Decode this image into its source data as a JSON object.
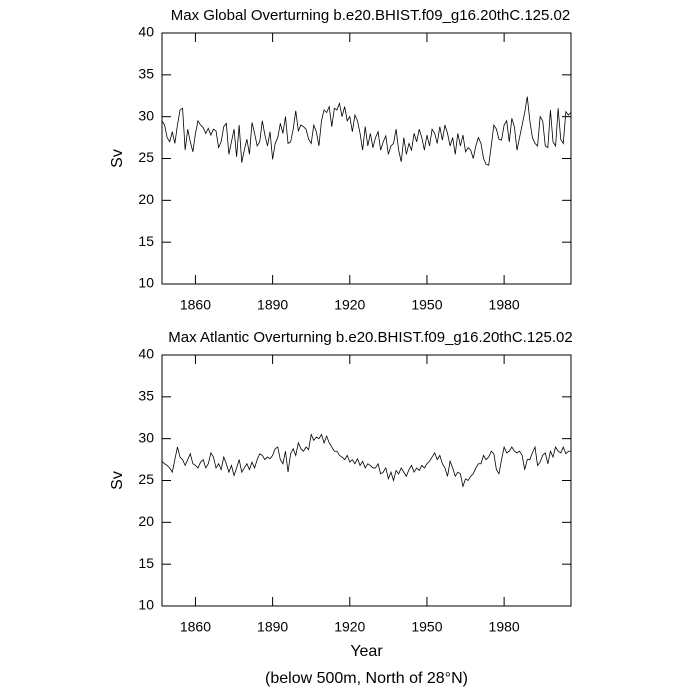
{
  "chart_data": [
    {
      "type": "line",
      "title": "Max Global Overturning b.e20.BHIST.f09_g16.20thC.125.02",
      "y_label": "Sv",
      "xlim": [
        1847,
        2006
      ],
      "ylim": [
        10,
        40
      ],
      "xticks": [
        1860,
        1890,
        1920,
        1950,
        1980
      ],
      "yticks": [
        10,
        15,
        20,
        25,
        30,
        35,
        40
      ],
      "x": [
        1847,
        1848,
        1849,
        1850,
        1851,
        1852,
        1853,
        1854,
        1855,
        1856,
        1857,
        1858,
        1859,
        1860,
        1861,
        1862,
        1863,
        1864,
        1865,
        1866,
        1867,
        1868,
        1869,
        1870,
        1871,
        1872,
        1873,
        1874,
        1875,
        1876,
        1877,
        1878,
        1879,
        1880,
        1881,
        1882,
        1883,
        1884,
        1885,
        1886,
        1887,
        1888,
        1889,
        1890,
        1891,
        1892,
        1893,
        1894,
        1895,
        1896,
        1897,
        1898,
        1899,
        1900,
        1901,
        1902,
        1903,
        1904,
        1905,
        1906,
        1907,
        1908,
        1909,
        1910,
        1911,
        1912,
        1913,
        1914,
        1915,
        1916,
        1917,
        1918,
        1919,
        1920,
        1921,
        1922,
        1923,
        1924,
        1925,
        1926,
        1927,
        1928,
        1929,
        1930,
        1931,
        1932,
        1933,
        1934,
        1935,
        1936,
        1937,
        1938,
        1939,
        1940,
        1941,
        1942,
        1943,
        1944,
        1945,
        1946,
        1947,
        1948,
        1949,
        1950,
        1951,
        1952,
        1953,
        1954,
        1955,
        1956,
        1957,
        1958,
        1959,
        1960,
        1961,
        1962,
        1963,
        1964,
        1965,
        1966,
        1967,
        1968,
        1969,
        1970,
        1971,
        1972,
        1973,
        1974,
        1975,
        1976,
        1977,
        1978,
        1979,
        1980,
        1981,
        1982,
        1983,
        1984,
        1985,
        1986,
        1987,
        1988,
        1989,
        1990,
        1991,
        1992,
        1993,
        1994,
        1995,
        1996,
        1997,
        1998,
        1999,
        2000,
        2001,
        2002,
        2003,
        2004,
        2005,
        2006
      ],
      "series": [
        {
          "color": "#000000",
          "values": [
            29.5,
            29.0,
            27.5,
            27.0,
            28.2,
            26.8,
            29.0,
            30.8,
            31.0,
            26.0,
            28.5,
            27.0,
            25.8,
            28.0,
            29.5,
            29.0,
            28.7,
            28.0,
            28.6,
            27.8,
            28.5,
            28.3,
            26.3,
            27.0,
            28.8,
            29.2,
            25.5,
            27.0,
            28.5,
            25.2,
            29.0,
            24.5,
            26.0,
            27.3,
            25.5,
            29.3,
            28.0,
            26.5,
            27.0,
            29.5,
            27.8,
            26.5,
            28.2,
            24.9,
            26.8,
            27.5,
            29.2,
            28.0,
            30.0,
            26.8,
            27.0,
            28.5,
            30.7,
            28.3,
            29.0,
            28.8,
            28.5,
            27.3,
            26.8,
            29.0,
            28.2,
            26.5,
            29.5,
            30.8,
            30.5,
            31.2,
            28.8,
            31.0,
            30.8,
            31.6,
            30.0,
            31.2,
            29.5,
            30.0,
            28.2,
            30.2,
            29.5,
            28.0,
            26.0,
            28.8,
            26.5,
            28.0,
            26.3,
            27.5,
            28.2,
            26.0,
            27.0,
            27.7,
            25.5,
            26.5,
            26.8,
            28.5,
            26.0,
            24.6,
            27.5,
            25.5,
            26.8,
            26.0,
            28.0,
            27.0,
            28.5,
            27.5,
            26.0,
            27.8,
            26.5,
            28.5,
            28.0,
            26.8,
            28.8,
            27.2,
            29.0,
            28.0,
            26.5,
            27.5,
            25.5,
            28.0,
            26.5,
            27.8,
            25.8,
            26.3,
            26.0,
            25.0,
            26.5,
            27.5,
            26.8,
            25.0,
            24.3,
            24.2,
            26.5,
            29.0,
            28.5,
            27.3,
            27.2,
            29.0,
            29.5,
            27.0,
            29.8,
            28.8,
            26.0,
            27.5,
            29.0,
            30.5,
            32.4,
            29.5,
            27.5,
            26.8,
            26.5,
            30.0,
            29.5,
            26.5,
            26.3,
            30.8,
            27.0,
            26.5,
            31.0,
            27.3,
            26.8,
            30.6,
            30.2,
            30.5
          ]
        }
      ]
    },
    {
      "type": "line",
      "title": "Max Atlantic Overturning b.e20.BHIST.f09_g16.20thC.125.02",
      "y_label": "Sv",
      "x_label": "Year",
      "note": "(below 500m, North of 28°N)",
      "xlim": [
        1847,
        2006
      ],
      "ylim": [
        10,
        40
      ],
      "xticks": [
        1860,
        1890,
        1920,
        1950,
        1980
      ],
      "yticks": [
        10,
        15,
        20,
        25,
        30,
        35,
        40
      ],
      "x": [
        1847,
        1848,
        1849,
        1850,
        1851,
        1852,
        1853,
        1854,
        1855,
        1856,
        1857,
        1858,
        1859,
        1860,
        1861,
        1862,
        1863,
        1864,
        1865,
        1866,
        1867,
        1868,
        1869,
        1870,
        1871,
        1872,
        1873,
        1874,
        1875,
        1876,
        1877,
        1878,
        1879,
        1880,
        1881,
        1882,
        1883,
        1884,
        1885,
        1886,
        1887,
        1888,
        1889,
        1890,
        1891,
        1892,
        1893,
        1894,
        1895,
        1896,
        1897,
        1898,
        1899,
        1900,
        1901,
        1902,
        1903,
        1904,
        1905,
        1906,
        1907,
        1908,
        1909,
        1910,
        1911,
        1912,
        1913,
        1914,
        1915,
        1916,
        1917,
        1918,
        1919,
        1920,
        1921,
        1922,
        1923,
        1924,
        1925,
        1926,
        1927,
        1928,
        1929,
        1930,
        1931,
        1932,
        1933,
        1934,
        1935,
        1936,
        1937,
        1938,
        1939,
        1940,
        1941,
        1942,
        1943,
        1944,
        1945,
        1946,
        1947,
        1948,
        1949,
        1950,
        1951,
        1952,
        1953,
        1954,
        1955,
        1956,
        1957,
        1958,
        1959,
        1960,
        1961,
        1962,
        1963,
        1964,
        1965,
        1966,
        1967,
        1968,
        1969,
        1970,
        1971,
        1972,
        1973,
        1974,
        1975,
        1976,
        1977,
        1978,
        1979,
        1980,
        1981,
        1982,
        1983,
        1984,
        1985,
        1986,
        1987,
        1988,
        1989,
        1990,
        1991,
        1992,
        1993,
        1994,
        1995,
        1996,
        1997,
        1998,
        1999,
        2000,
        2001,
        2002,
        2003,
        2004,
        2005,
        2006
      ],
      "series": [
        {
          "color": "#000000",
          "values": [
            27.3,
            27.0,
            26.8,
            26.5,
            26.0,
            27.5,
            29.0,
            27.8,
            27.5,
            26.8,
            27.5,
            28.2,
            27.0,
            26.8,
            26.5,
            27.2,
            27.5,
            26.5,
            27.0,
            28.3,
            27.8,
            26.5,
            27.0,
            26.3,
            27.8,
            27.0,
            26.0,
            26.8,
            25.6,
            26.5,
            27.5,
            26.0,
            26.5,
            27.0,
            26.3,
            27.2,
            26.5,
            27.5,
            28.2,
            28.0,
            27.5,
            27.8,
            27.6,
            28.0,
            28.8,
            29.0,
            27.5,
            27.0,
            28.5,
            26.0,
            28.2,
            28.8,
            28.0,
            29.5,
            28.8,
            28.5,
            29.0,
            28.7,
            30.5,
            29.8,
            30.2,
            30.0,
            30.5,
            29.5,
            30.3,
            29.5,
            29.0,
            28.5,
            28.5,
            28.0,
            27.8,
            27.5,
            28.0,
            27.2,
            27.5,
            27.0,
            27.6,
            26.8,
            27.3,
            26.5,
            27.0,
            26.8,
            26.5,
            26.5,
            27.0,
            25.8,
            26.0,
            26.5,
            25.2,
            26.0,
            25.0,
            26.2,
            25.8,
            26.5,
            26.0,
            25.5,
            26.3,
            26.8,
            26.0,
            26.5,
            26.2,
            26.8,
            26.5,
            27.0,
            27.3,
            27.8,
            28.3,
            27.5,
            28.0,
            27.0,
            26.5,
            25.5,
            27.3,
            26.5,
            25.5,
            26.0,
            25.8,
            24.3,
            25.2,
            25.0,
            25.5,
            25.8,
            26.5,
            27.0,
            27.0,
            28.0,
            27.5,
            27.8,
            28.5,
            28.2,
            26.3,
            25.8,
            27.5,
            29.0,
            28.3,
            28.5,
            29.0,
            28.5,
            28.3,
            28.5,
            28.0,
            26.3,
            27.5,
            27.5,
            28.3,
            29.0,
            26.8,
            27.2,
            28.0,
            28.3,
            27.0,
            28.5,
            27.8,
            29.0,
            28.5,
            28.3,
            29.0,
            28.2,
            28.5,
            28.5
          ]
        }
      ]
    }
  ]
}
